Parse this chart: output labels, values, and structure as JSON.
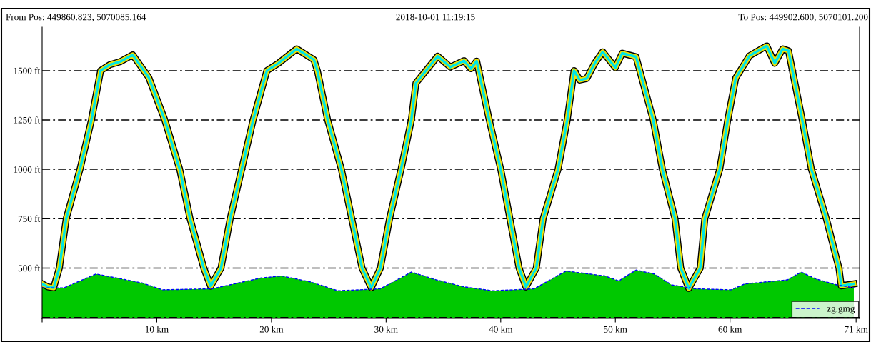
{
  "chart_data": {
    "type": "line",
    "title": "2018-10-01 11:19:15",
    "annotations": [
      "From Pos: 449860.823, 5070085.164",
      "To Pos: 449902.600, 5070101.200"
    ],
    "xlim": [
      0,
      71.3
    ],
    "ylim": [
      245,
      1720
    ],
    "xticks": [
      {
        "value": 0,
        "label": null
      },
      {
        "value": 10,
        "label": "10 km"
      },
      {
        "value": 20,
        "label": "20 km"
      },
      {
        "value": 30,
        "label": "30 km"
      },
      {
        "value": 40,
        "label": "40 km"
      },
      {
        "value": 50,
        "label": "50 km"
      },
      {
        "value": 60,
        "label": "60 km"
      },
      {
        "value": 71,
        "label": "71 km"
      }
    ],
    "yticks": [
      {
        "value": 250,
        "label": null
      },
      {
        "value": 500,
        "label": "500 ft"
      },
      {
        "value": 750,
        "label": "750 ft"
      },
      {
        "value": 1000,
        "label": "1000 ft"
      },
      {
        "value": 1250,
        "label": "1250 ft"
      },
      {
        "value": 1500,
        "label": "1500 ft"
      }
    ],
    "grid": "y",
    "legend": "bottom right",
    "series": [
      {
        "type": "area",
        "color": "#00c800",
        "x": [
          0,
          1.9,
          4.7,
          8.7,
          10.5,
          14.8,
          19.1,
          20.9,
          23.4,
          25.8,
          29.5,
          32.2,
          34.4,
          36.8,
          39.3,
          42.9,
          45.7,
          49.1,
          50.3,
          51.8,
          53.4,
          54.9,
          57.0,
          60.1,
          61.3,
          65.0,
          66.2,
          67.5,
          69.3,
          70.8
        ],
        "values": [
          400,
          400,
          470,
          425,
          390,
          395,
          450,
          460,
          430,
          385,
          395,
          480,
          440,
          405,
          385,
          395,
          485,
          460,
          435,
          490,
          470,
          415,
          395,
          390,
          420,
          440,
          480,
          445,
          415,
          400
        ]
      },
      {
        "name": "zg.gmg",
        "color": "#0000ff",
        "line_style": "dashed",
        "x": [
          0,
          1.9,
          4.7,
          8.7,
          10.5,
          14.8,
          19.1,
          20.9,
          23.4,
          25.8,
          29.5,
          32.2,
          34.4,
          36.8,
          39.3,
          42.9,
          45.7,
          49.1,
          50.3,
          51.8,
          53.4,
          54.9,
          57.0,
          60.1,
          61.3,
          65.0,
          66.2,
          67.5,
          69.3,
          70.8
        ],
        "values": [
          400,
          400,
          470,
          425,
          390,
          395,
          450,
          460,
          430,
          385,
          395,
          480,
          440,
          405,
          385,
          395,
          485,
          460,
          435,
          490,
          470,
          415,
          395,
          390,
          420,
          440,
          480,
          445,
          415,
          400
        ]
      },
      {
        "color": "#00e5e5",
        "x": [
          0,
          0.5,
          1.0,
          1.5,
          2.1,
          3.3,
          4.3,
          5.1,
          5.9,
          6.8,
          7.9,
          9.3,
          10.7,
          12.0,
          12.9,
          14.1,
          14.7,
          15.6,
          16.4,
          17.4,
          18.4,
          19.6,
          20.6,
          22.2,
          23.7,
          24.0,
          24.9,
          26.1,
          27.0,
          27.9,
          28.7,
          29.5,
          30.3,
          31.3,
          32.2,
          32.6,
          33.2,
          34.5,
          35.6,
          36.8,
          37.4,
          37.9,
          39.0,
          40.0,
          40.8,
          41.6,
          42.2,
          43.1,
          43.7,
          45.0,
          45.8,
          46.4,
          46.9,
          47.5,
          48.2,
          48.9,
          50.0,
          50.6,
          51.8,
          53.3,
          54.1,
          55.2,
          55.7,
          56.4,
          57.4,
          57.8,
          59.1,
          59.8,
          60.5,
          61.7,
          63.2,
          63.9,
          64.6,
          65.1,
          66.3,
          67.1,
          68.4,
          69.5,
          69.7,
          70.8
        ],
        "values": [
          420,
          405,
          400,
          500,
          750,
          1000,
          1250,
          1500,
          1530,
          1545,
          1580,
          1465,
          1250,
          1000,
          750,
          500,
          408,
          500,
          750,
          1000,
          1250,
          1500,
          1537,
          1610,
          1555,
          1500,
          1250,
          1000,
          750,
          500,
          400,
          500,
          750,
          1000,
          1250,
          1437,
          1480,
          1573,
          1518,
          1550,
          1510,
          1548,
          1250,
          1000,
          750,
          500,
          404,
          500,
          750,
          1000,
          1250,
          1500,
          1452,
          1460,
          1537,
          1595,
          1515,
          1588,
          1570,
          1250,
          1000,
          750,
          500,
          397,
          500,
          750,
          1000,
          1250,
          1463,
          1575,
          1625,
          1537,
          1610,
          1600,
          1250,
          1000,
          750,
          500,
          410,
          420
        ]
      }
    ]
  }
}
